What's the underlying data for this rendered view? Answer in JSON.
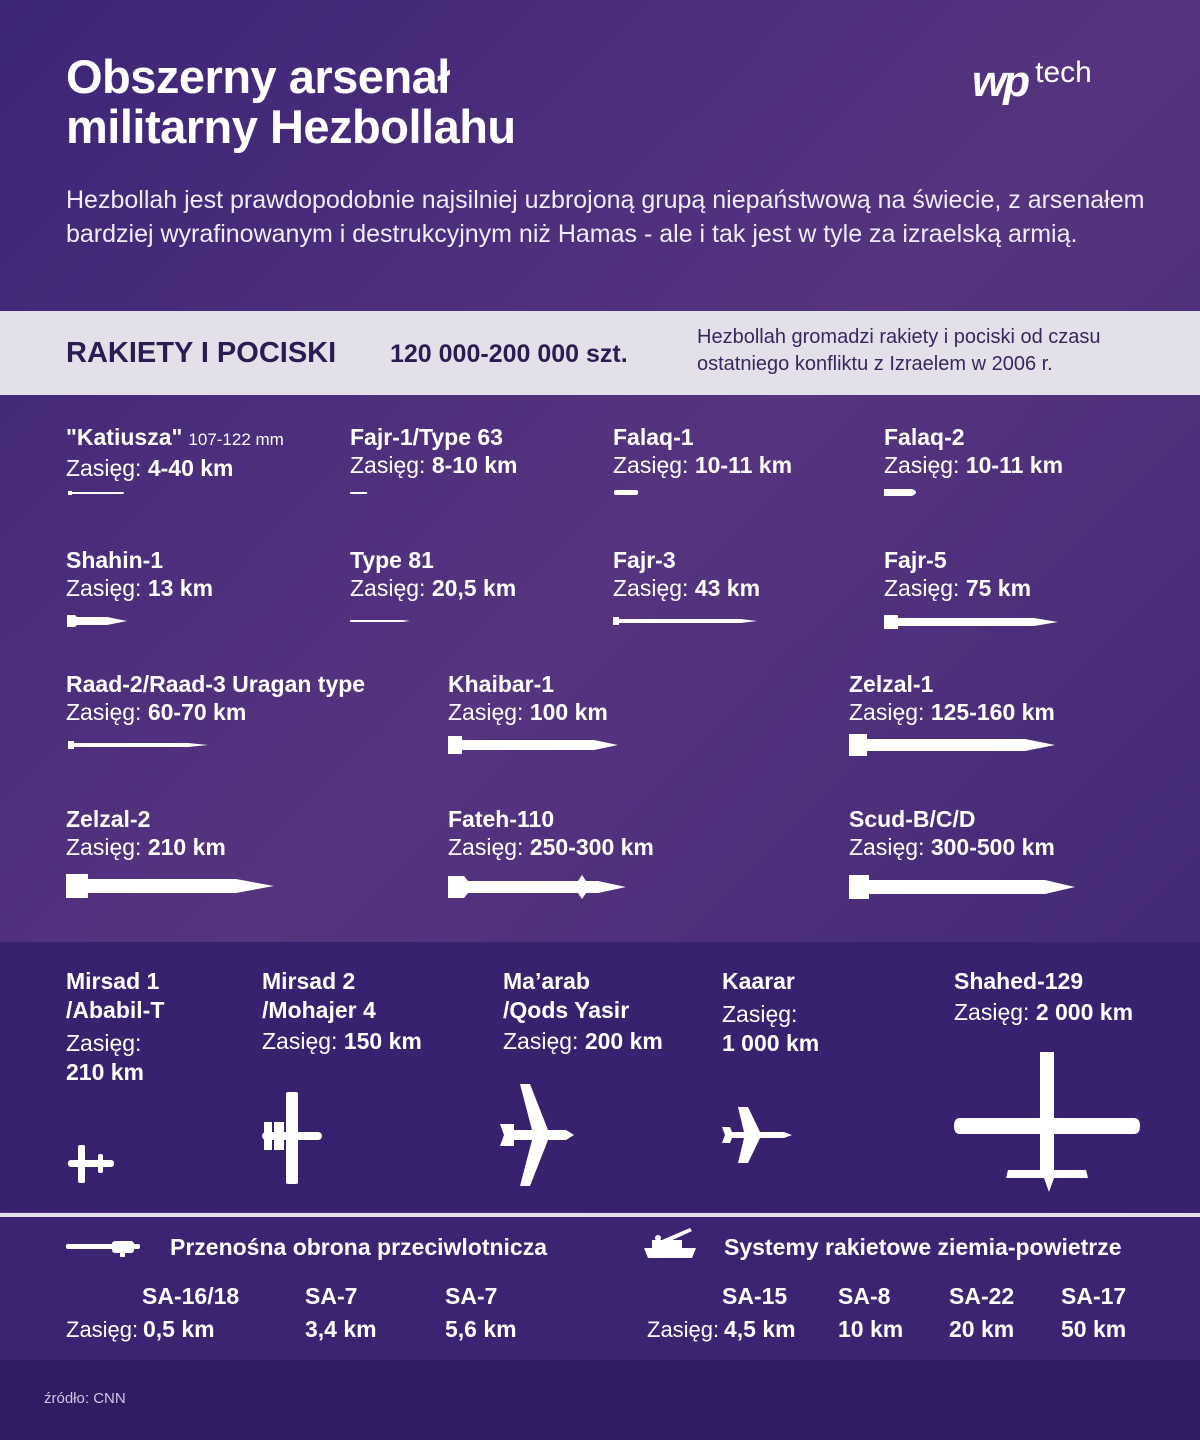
{
  "title_line1": "Obszerny arsenał",
  "title_line2": "militarny Hezbollahu",
  "logo": {
    "mark": "wp",
    "text": "tech"
  },
  "intro": "Hezbollah jest prawdopodobnie najsilniej uzbrojoną grupą niepaństwową na świecie, z arsenałem bardziej wyrafinowanym i destrukcyjnym niż Hamas - ale i tak jest w tyle za izraelską armią.",
  "section": {
    "heading": "RAKIETY I POCISKI",
    "quantity": "120 000-200 000 szt.",
    "note": "Hezbollah gromadzi rakiety i pociski od czasu ostatniego konfliktu z Izraelem w 2006 r."
  },
  "range_label": "Zasięg:",
  "rockets": [
    {
      "name": "\"Katiusza\"",
      "sub": "107-122 mm",
      "range": "4-40 km"
    },
    {
      "name": "Fajr-1/Type 63",
      "sub": "",
      "range": "8-10 km"
    },
    {
      "name": "Falaq-1",
      "sub": "",
      "range": "10-11 km"
    },
    {
      "name": "Falaq-2",
      "sub": "",
      "range": "10-11 km"
    },
    {
      "name": "Shahin-1",
      "sub": "",
      "range": "13 km"
    },
    {
      "name": "Type 81",
      "sub": "",
      "range": "20,5 km"
    },
    {
      "name": "Fajr-3",
      "sub": "",
      "range": "43 km"
    },
    {
      "name": "Fajr-5",
      "sub": "",
      "range": "75 km"
    },
    {
      "name": "Raad-2/Raad-3 Uragan type",
      "sub": "",
      "range": "60-70 km"
    },
    {
      "name": "Khaibar-1",
      "sub": "",
      "range": "100 km"
    },
    {
      "name": "Zelzal-1",
      "sub": "",
      "range": "125-160 km"
    },
    {
      "name": "Zelzal-2",
      "sub": "",
      "range": "210 km"
    },
    {
      "name": "Fateh-110",
      "sub": "",
      "range": "250-300 km"
    },
    {
      "name": "Scud-B/C/D",
      "sub": "",
      "range": "300-500 km"
    }
  ],
  "drones": [
    {
      "name_line1": "Mirsad 1",
      "name_line2": "/Ababil-T",
      "range": "210 km"
    },
    {
      "name_line1": "Mirsad 2",
      "name_line2": "/Mohajer 4",
      "range": "150 km"
    },
    {
      "name_line1": "Ma’arab",
      "name_line2": "/Qods Yasir",
      "range": "200 km"
    },
    {
      "name_line1": "Kaarar",
      "name_line2": "",
      "range": "1 000 km"
    },
    {
      "name_line1": "Shahed-129",
      "name_line2": "",
      "range": "2 000 km"
    }
  ],
  "manpads": {
    "heading": "Przenośna obrona przeciwlotnicza",
    "systems": [
      {
        "name": "SA-16/18",
        "range": "0,5 km"
      },
      {
        "name": "SA-7",
        "range": "3,4 km"
      },
      {
        "name": "SA-7",
        "range": "5,6 km"
      }
    ]
  },
  "sam": {
    "heading": "Systemy rakietowe ziemia-powietrze",
    "systems": [
      {
        "name": "SA-15",
        "range": "4,5 km"
      },
      {
        "name": "SA-8",
        "range": "10 km"
      },
      {
        "name": "SA-22",
        "range": "20 km"
      },
      {
        "name": "SA-17",
        "range": "50 km"
      }
    ]
  },
  "source": "źródło: CNN",
  "colors": {
    "background": "#4a2e7c",
    "band": "#e3e0ea",
    "band_text": "#2a1d52"
  }
}
